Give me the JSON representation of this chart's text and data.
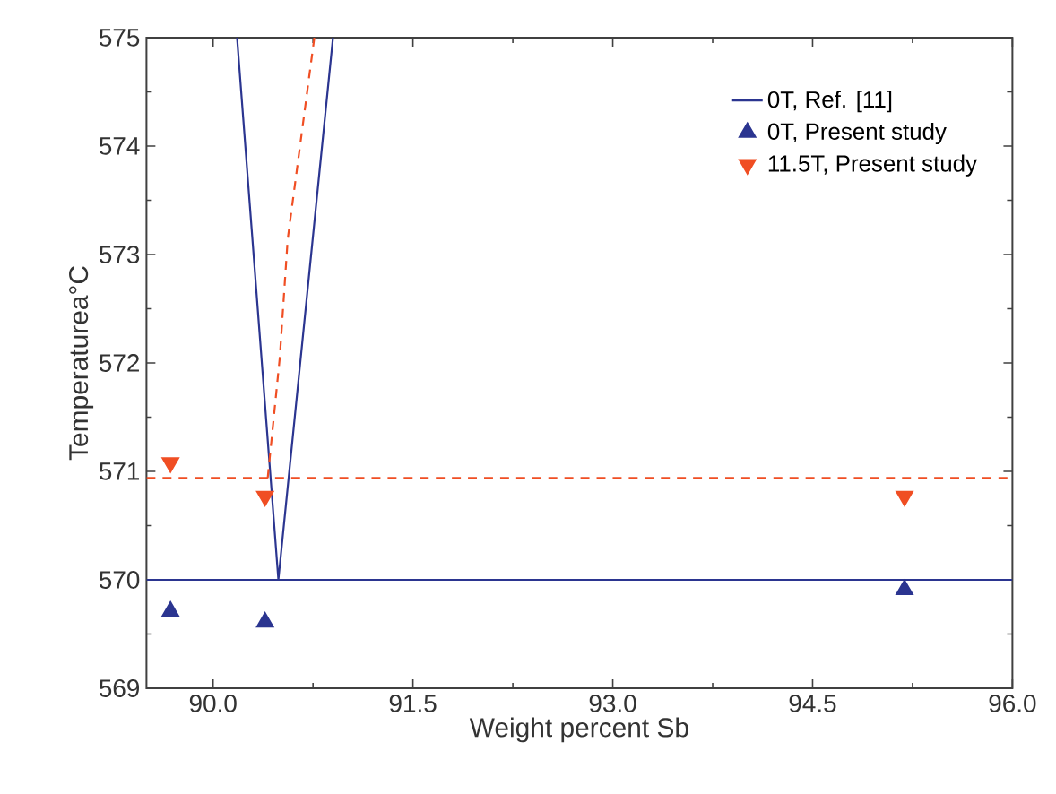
{
  "chart_data": {
    "type": "scatter",
    "xlabel": "Weight percent Sb",
    "ylabel": "Temperaturea°C",
    "xlim": [
      89.5,
      96.0
    ],
    "xticks": [
      {
        "value": 90,
        "label": "90.0"
      },
      91.5,
      {
        "value": 93,
        "label": "93.0"
      },
      94.5,
      {
        "value": 96,
        "label": "96.0"
      }
    ],
    "ylim": [
      569,
      575
    ],
    "yticks": [
      569,
      570,
      571,
      572,
      573,
      574,
      575
    ],
    "legend": "top right",
    "grid": false,
    "series": [
      {
        "name": "0T, Ref. [11]",
        "type": "line",
        "color": "#2b3590",
        "line_style": "solid",
        "marker": "none",
        "x": [
          90.18,
          90.49,
          90.9
        ],
        "values": [
          575,
          570,
          575
        ]
      },
      {
        "type": "line",
        "color": "#f04e23",
        "line_style": "dashed",
        "marker": "none",
        "x": [
          90.41,
          90.5,
          90.56,
          90.76
        ],
        "values": [
          570.94,
          572.04,
          573.14,
          575
        ]
      },
      {
        "name": "0T, Present study",
        "color": "#2b3590",
        "marker": "triangle",
        "x": [
          89.68,
          90.39,
          95.19
        ],
        "values": [
          569.71,
          569.61,
          569.91
        ]
      },
      {
        "name": "11.5T, Present study",
        "color": "#f04e23",
        "marker": "triangle_down",
        "x": [
          89.68,
          90.39,
          95.19
        ],
        "values": [
          571.08,
          570.77,
          570.77
        ]
      }
    ],
    "ref_lines": [
      {
        "axis": "y",
        "value": 570,
        "color": "#2b3590",
        "line_style": "solid"
      },
      {
        "axis": "y",
        "value": 570.94,
        "color": "#f04e23",
        "line_style": "dashed"
      }
    ]
  }
}
